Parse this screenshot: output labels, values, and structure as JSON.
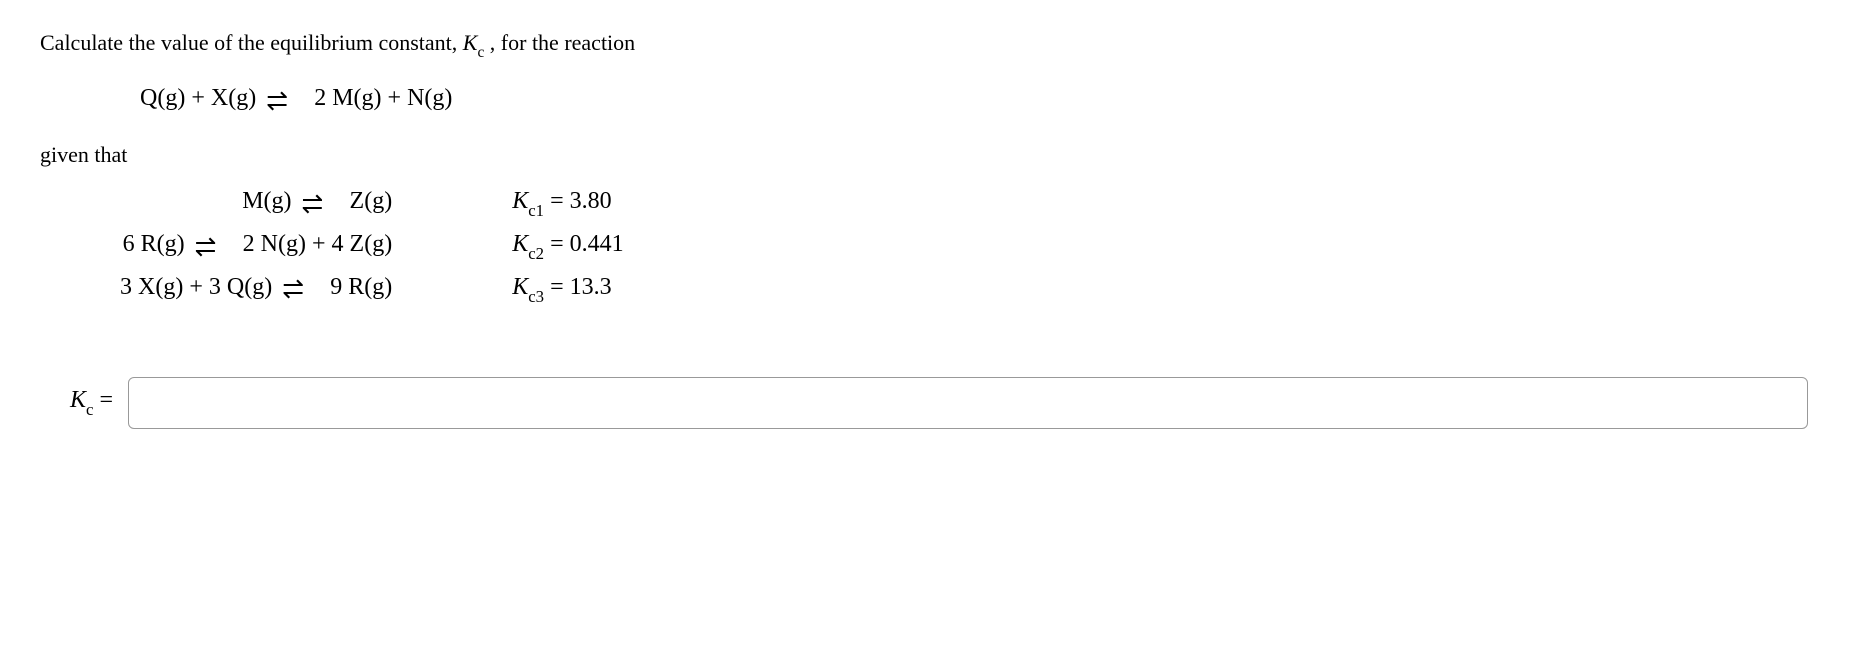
{
  "question": {
    "prefix": "Calculate the value of the equilibrium constant, ",
    "symbol_K": "K",
    "symbol_sub": "c",
    "suffix": " , for the reaction"
  },
  "main_equation": {
    "lhs_1": "Q(g)",
    "plus": " + ",
    "lhs_2": "X(g)",
    "rhs_1": "2 M(g)",
    "rhs_2": "N(g)"
  },
  "given_text": "given that",
  "eq1": {
    "lhs": "M(g)",
    "rhs": "Z(g)",
    "k_label_K": "K",
    "k_label_sub": "c1",
    "k_value": "3.80"
  },
  "eq2": {
    "lhs": "6 R(g)",
    "rhs_1": "2 N(g)",
    "rhs_2": "4 Z(g)",
    "k_label_K": "K",
    "k_label_sub": "c2",
    "k_value": "0.441"
  },
  "eq3": {
    "lhs_1": "3 X(g)",
    "lhs_2": "3 Q(g)",
    "rhs": "9 R(g)",
    "k_label_K": "K",
    "k_label_sub": "c3",
    "k_value": "13.3"
  },
  "answer": {
    "label_K": "K",
    "label_sub": "c",
    "equals": " = ",
    "value": ""
  }
}
